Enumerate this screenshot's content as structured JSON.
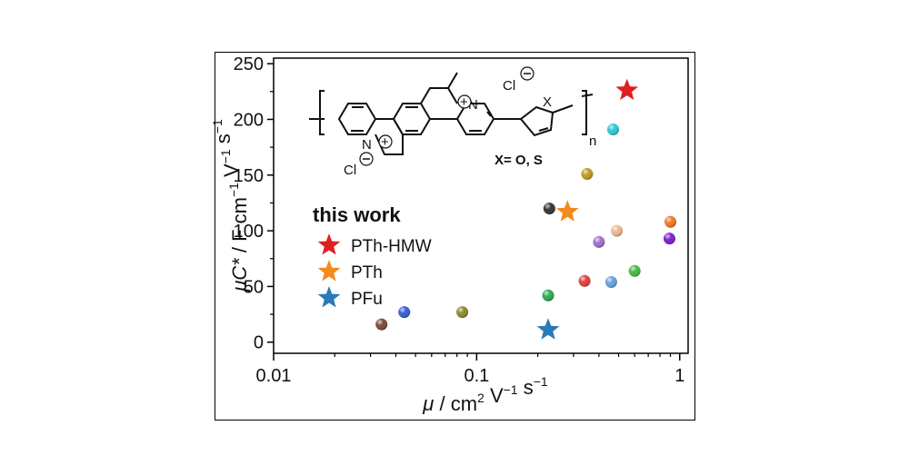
{
  "chart_data": {
    "type": "scatter",
    "xscale": "log",
    "xlim": [
      0.01,
      1.1
    ],
    "ylim": [
      -10,
      255
    ],
    "xlabel_parts": [
      "μ",
      " / cm",
      "2",
      " V",
      "−1",
      " s",
      "−1"
    ],
    "ylabel_parts": [
      "μC*",
      " / F cm",
      "−1",
      " V",
      "−1",
      " s",
      "−1"
    ],
    "x_ticks": [
      {
        "value": 0.01,
        "label": "0.01"
      },
      {
        "value": 0.1,
        "label": "0.1"
      },
      {
        "value": 1,
        "label": "1"
      }
    ],
    "y_ticks": [
      {
        "value": 0,
        "label": "0"
      },
      {
        "value": 50,
        "label": "50"
      },
      {
        "value": 100,
        "label": "100"
      },
      {
        "value": 150,
        "label": "150"
      },
      {
        "value": 200,
        "label": "200"
      },
      {
        "value": 250,
        "label": "250"
      }
    ],
    "literature_points": [
      {
        "x": 0.034,
        "y": 16,
        "color": "#7a4a3a"
      },
      {
        "x": 0.044,
        "y": 27,
        "color": "#2f5fd0"
      },
      {
        "x": 0.085,
        "y": 27,
        "color": "#8a8a28"
      },
      {
        "x": 0.225,
        "y": 42,
        "color": "#2faa55"
      },
      {
        "x": 0.228,
        "y": 120,
        "color": "#333333"
      },
      {
        "x": 0.34,
        "y": 55,
        "color": "#e04040"
      },
      {
        "x": 0.35,
        "y": 151,
        "color": "#c09a20"
      },
      {
        "x": 0.4,
        "y": 90,
        "color": "#a070d0"
      },
      {
        "x": 0.46,
        "y": 54,
        "color": "#6aa0e0"
      },
      {
        "x": 0.47,
        "y": 191,
        "color": "#30c8d0"
      },
      {
        "x": 0.49,
        "y": 100,
        "color": "#f0b890"
      },
      {
        "x": 0.6,
        "y": 64,
        "color": "#44bb44"
      },
      {
        "x": 0.89,
        "y": 93,
        "color": "#7a20d0"
      },
      {
        "x": 0.9,
        "y": 108,
        "color": "#f07820"
      }
    ],
    "series": [
      {
        "name": "PTh-HMW",
        "color": "#e02020",
        "marker": "star",
        "points": [
          {
            "x": 0.55,
            "y": 226
          }
        ]
      },
      {
        "name": "PTh",
        "color": "#f28a1c",
        "marker": "star",
        "points": [
          {
            "x": 0.28,
            "y": 117
          }
        ]
      },
      {
        "name": "PFu",
        "color": "#2a7ab8",
        "marker": "star",
        "points": [
          {
            "x": 0.225,
            "y": 11
          }
        ]
      }
    ],
    "legend_title": "this work",
    "legend_position": "lower-left",
    "grid": false
  },
  "structure_labels": {
    "cl_top": "Cl",
    "cl_bottom": "Cl",
    "x_atom": "X",
    "subscript_n": "n",
    "substituent": "X= O, S",
    "n_plus_top": "N",
    "n_plus_bottom": "N"
  }
}
